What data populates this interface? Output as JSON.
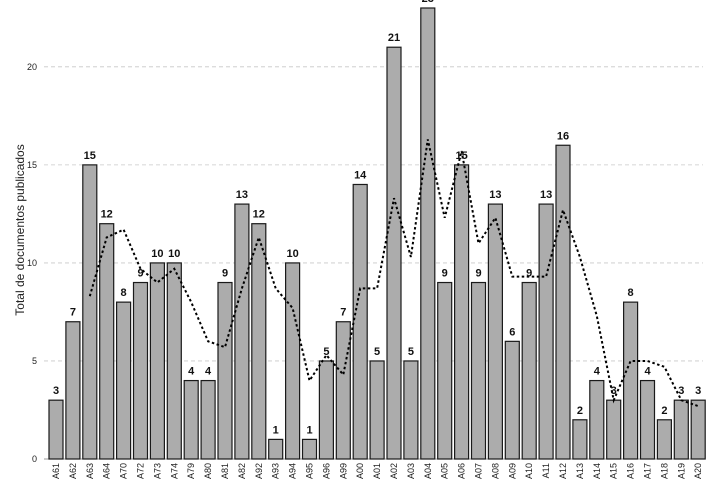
{
  "chart_data": {
    "type": "bar",
    "ylabel": "Total de documentos publicados",
    "ylim": [
      0,
      23
    ],
    "yticks": [
      0,
      5,
      10,
      15,
      20
    ],
    "grid": true,
    "categories": [
      "A61",
      "A62",
      "A63",
      "A64",
      "A70",
      "A72",
      "A73",
      "A74",
      "A79",
      "A80",
      "A81",
      "A82",
      "A92",
      "A93",
      "A94",
      "A95",
      "A96",
      "A99",
      "A00",
      "A01",
      "A02",
      "A03",
      "A04",
      "A05",
      "A06",
      "A07",
      "A08",
      "A09",
      "A10",
      "A11",
      "A12",
      "A13",
      "A14",
      "A15",
      "A16",
      "A17",
      "A18",
      "A19",
      "A20"
    ],
    "series": [
      {
        "values": [
          3,
          7,
          15,
          12,
          8,
          9,
          10,
          10,
          4,
          4,
          9,
          13,
          12,
          1,
          10,
          1,
          5,
          7,
          14,
          5,
          21,
          5,
          23,
          9,
          15,
          9,
          13,
          6,
          9,
          13,
          16,
          2,
          4,
          3,
          8,
          4,
          2,
          3,
          3
        ]
      }
    ],
    "trendline": {
      "style": "dotted",
      "values": [
        null,
        null,
        8.3,
        11.3,
        11.7,
        9.7,
        9.0,
        9.7,
        8.0,
        6.0,
        5.7,
        8.7,
        11.3,
        8.7,
        7.7,
        4.0,
        5.3,
        4.3,
        8.7,
        8.7,
        13.3,
        10.3,
        16.3,
        12.3,
        15.7,
        11.0,
        12.3,
        9.3,
        9.3,
        9.3,
        12.7,
        10.3,
        7.3,
        3.0,
        5.0,
        5.0,
        4.7,
        3.0,
        2.7
      ]
    }
  }
}
